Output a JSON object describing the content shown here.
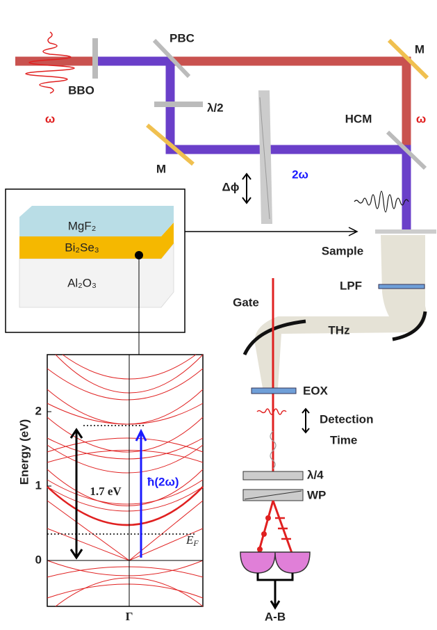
{
  "setup": {
    "omega_left": "ω",
    "bbo": "BBO",
    "pbc": "PBC",
    "mirror_right": "M",
    "omega_right": "ω",
    "half_wave": "λ/2",
    "hcm": "HCM",
    "mirror_left": "M",
    "two_omega": "2ω",
    "phase": "Δϕ",
    "sample": "Sample",
    "lpf": "LPF",
    "gate": "Gate",
    "thz": "THz",
    "eox": "EOX",
    "detection": "Detection",
    "time": "Time",
    "quarter_wave": "λ/4",
    "wp": "WP",
    "output": "A-B"
  },
  "layers": {
    "top": "MgF₂",
    "middle": "Bi₂Se₃",
    "bottom": "Al₂O₃"
  },
  "band_plot": {
    "ylabel": "Energy (eV)",
    "yticks": [
      0,
      1,
      2
    ],
    "gap": "1.7 eV",
    "photon": "ħ(2ω)",
    "fermi": {
      "base": "E",
      "sub": "F"
    },
    "xlabel": "Γ"
  }
}
